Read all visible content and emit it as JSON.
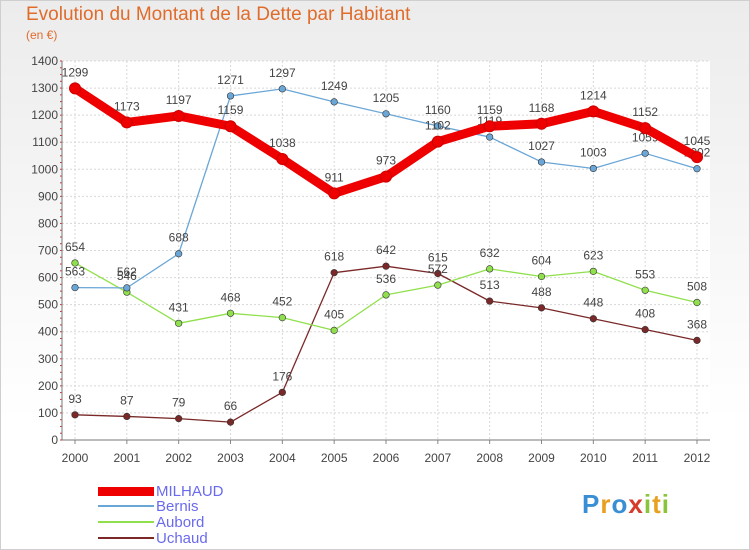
{
  "header": {
    "title": "Evolution du Montant de la Dette par Habitant",
    "unit": "(en €)"
  },
  "chart_data": {
    "type": "line",
    "x": [
      "2000",
      "2001",
      "2002",
      "2003",
      "2004",
      "2005",
      "2006",
      "2007",
      "2008",
      "2009",
      "2010",
      "2011",
      "2012"
    ],
    "ylim": [
      0,
      1400
    ],
    "yticks": [
      0,
      100,
      200,
      300,
      400,
      500,
      600,
      700,
      800,
      900,
      1000,
      1100,
      1200,
      1300,
      1400
    ],
    "grid": true,
    "legend_position": "bottom-left",
    "series": [
      {
        "name": "MILHAUD",
        "color": "#ee0000",
        "values": [
          1299,
          1173,
          1197,
          1159,
          1038,
          911,
          973,
          1102,
          1159,
          1168,
          1214,
          1152,
          1045
        ]
      },
      {
        "name": "Bernis",
        "color": "#6aa6d6",
        "values": [
          563,
          562,
          688,
          1271,
          1297,
          1249,
          1205,
          1160,
          1119,
          1027,
          1003,
          1059,
          1002
        ]
      },
      {
        "name": "Aubord",
        "color": "#8fe04c",
        "values": [
          654,
          546,
          431,
          468,
          452,
          405,
          536,
          572,
          632,
          604,
          623,
          553,
          508
        ]
      },
      {
        "name": "Uchaud",
        "color": "#7a2828",
        "values": [
          93,
          87,
          79,
          66,
          176,
          618,
          642,
          615,
          513,
          488,
          448,
          408,
          368
        ]
      }
    ]
  },
  "logo": {
    "letters": [
      "P",
      "r",
      "o",
      "x",
      "i",
      "t",
      "i"
    ],
    "colors": [
      "#3a8fd4",
      "#e8a020",
      "#3a8fd4",
      "#d63a2a",
      "#8ac43a",
      "#e8a020",
      "#8ac43a"
    ]
  }
}
